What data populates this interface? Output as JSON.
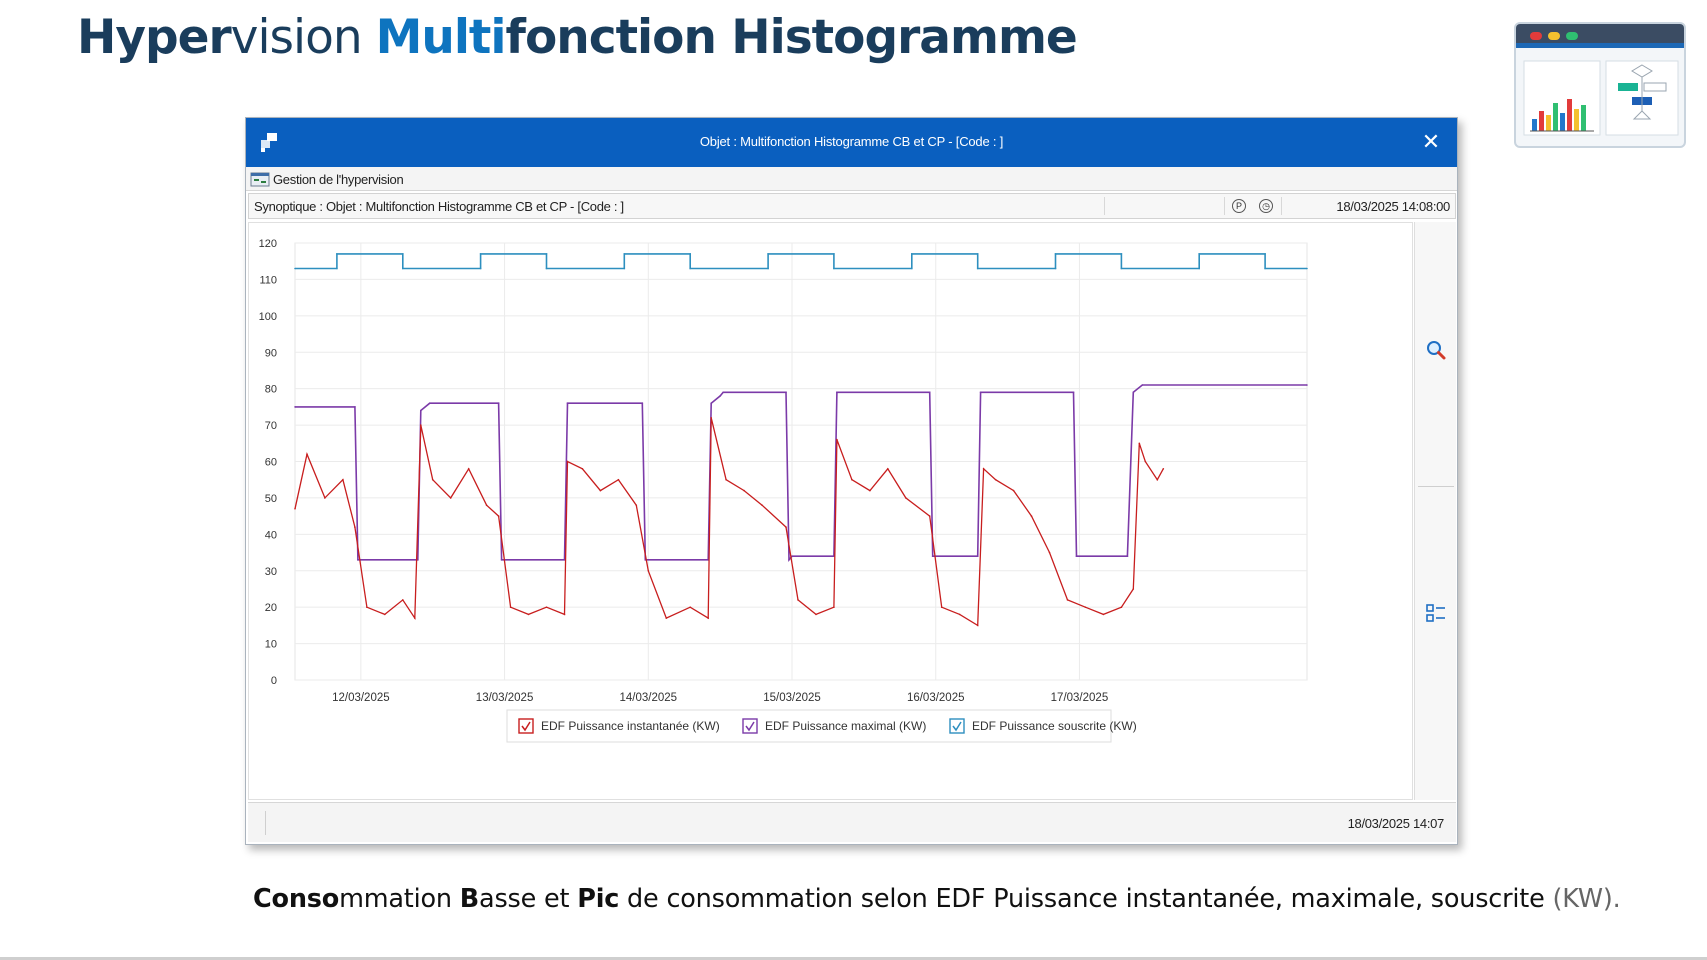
{
  "slide": {
    "title_parts": [
      "Hyper",
      "v",
      "ision ",
      "Multi",
      "fonction Histogramme"
    ],
    "caption_parts": [
      "Conso",
      "mmation ",
      "B",
      "asse et ",
      "Pic",
      " de consommation selon EDF Puissance instantanée, maximale, souscrite ",
      "(KW)",
      "."
    ]
  },
  "window": {
    "title": "Objet : Multifonction Histogramme CB et CP - [Code : ]",
    "menu_label": "Gestion de l'hypervision",
    "synoptique": "Synoptique : Objet : Multifonction Histogramme CB et CP - [Code : ]",
    "datetime": "18/03/2025 14:08:00",
    "status_datetime": "18/03/2025 14:07",
    "close_glyph": "✕"
  },
  "icons": {
    "app": "window-app-icon",
    "close": "close-icon",
    "menu": "hypervision-menu-icon",
    "info_p": "p-circle-icon",
    "info_clock": "clock-icon",
    "zoom": "magnifier-icon",
    "legend_toggle": "legend-list-icon"
  },
  "colors": {
    "title_dark": "#1a3d5c",
    "title_accent": "#0e74bf",
    "window_titlebar": "#0a5fbf",
    "instant": "#c81e1e",
    "maximal": "#7b3aa8",
    "souscrite": "#2d8fbf"
  },
  "chart_data": {
    "type": "line",
    "y_range": [
      0,
      120
    ],
    "y_ticks": [
      0,
      10,
      20,
      30,
      40,
      50,
      60,
      70,
      80,
      90,
      100,
      110,
      120
    ],
    "x_range": [
      "2025-03-11T13:00",
      "2025-03-18T14:00"
    ],
    "x_ticks": [
      "12/03/2025",
      "13/03/2025",
      "14/03/2025",
      "15/03/2025",
      "16/03/2025",
      "17/03/2025"
    ],
    "grid": true,
    "legend_position": "bottom-center",
    "series": [
      {
        "name": "EDF Puissance souscrite (KW)",
        "color": "#2d8fbf",
        "points": [
          [
            "2025-03-11T13:00",
            113
          ],
          [
            "2025-03-11T20:00",
            113
          ],
          [
            "2025-03-11T20:00",
            117
          ],
          [
            "2025-03-12T07:00",
            117
          ],
          [
            "2025-03-12T07:00",
            113
          ],
          [
            "2025-03-12T20:00",
            113
          ],
          [
            "2025-03-12T20:00",
            117
          ],
          [
            "2025-03-13T07:00",
            117
          ],
          [
            "2025-03-13T07:00",
            113
          ],
          [
            "2025-03-13T20:00",
            113
          ],
          [
            "2025-03-13T20:00",
            117
          ],
          [
            "2025-03-14T07:00",
            117
          ],
          [
            "2025-03-14T07:00",
            113
          ],
          [
            "2025-03-14T20:00",
            113
          ],
          [
            "2025-03-14T20:00",
            117
          ],
          [
            "2025-03-15T07:00",
            117
          ],
          [
            "2025-03-15T07:00",
            113
          ],
          [
            "2025-03-15T20:00",
            113
          ],
          [
            "2025-03-15T20:00",
            117
          ],
          [
            "2025-03-16T07:00",
            117
          ],
          [
            "2025-03-16T07:00",
            113
          ],
          [
            "2025-03-16T20:00",
            113
          ],
          [
            "2025-03-16T20:00",
            117
          ],
          [
            "2025-03-17T07:00",
            117
          ],
          [
            "2025-03-17T07:00",
            113
          ],
          [
            "2025-03-17T20:00",
            113
          ],
          [
            "2025-03-17T20:00",
            117
          ],
          [
            "2025-03-18T07:00",
            117
          ],
          [
            "2025-03-18T07:00",
            113
          ],
          [
            "2025-03-18T14:00",
            113
          ]
        ]
      },
      {
        "name": "EDF Puissance maximal (KW)",
        "color": "#7b3aa8",
        "points": [
          [
            "2025-03-11T13:00",
            75
          ],
          [
            "2025-03-11T23:00",
            75
          ],
          [
            "2025-03-11T23:30",
            33
          ],
          [
            "2025-03-12T09:30",
            33
          ],
          [
            "2025-03-12T10:00",
            74
          ],
          [
            "2025-03-12T11:30",
            76
          ],
          [
            "2025-03-12T23:00",
            76
          ],
          [
            "2025-03-12T23:30",
            33
          ],
          [
            "2025-03-13T10:00",
            33
          ],
          [
            "2025-03-13T10:30",
            76
          ],
          [
            "2025-03-13T23:00",
            76
          ],
          [
            "2025-03-13T23:30",
            33
          ],
          [
            "2025-03-14T10:00",
            33
          ],
          [
            "2025-03-14T10:30",
            76
          ],
          [
            "2025-03-14T12:00",
            78
          ],
          [
            "2025-03-14T12:30",
            79
          ],
          [
            "2025-03-14T23:00",
            79
          ],
          [
            "2025-03-14T23:30",
            33
          ],
          [
            "2025-03-15T00:00",
            34
          ],
          [
            "2025-03-15T07:00",
            34
          ],
          [
            "2025-03-15T07:30",
            79
          ],
          [
            "2025-03-15T23:00",
            79
          ],
          [
            "2025-03-15T23:30",
            34
          ],
          [
            "2025-03-16T07:00",
            34
          ],
          [
            "2025-03-16T07:30",
            79
          ],
          [
            "2025-03-16T23:00",
            79
          ],
          [
            "2025-03-16T23:30",
            34
          ],
          [
            "2025-03-17T08:00",
            34
          ],
          [
            "2025-03-17T09:00",
            79
          ],
          [
            "2025-03-17T10:30",
            81
          ],
          [
            "2025-03-18T14:00",
            81
          ]
        ]
      },
      {
        "name": "EDF Puissance instantanée (KW)",
        "color": "#c81e1e",
        "points": [
          [
            "2025-03-11T13:00",
            47
          ],
          [
            "2025-03-11T15:00",
            62
          ],
          [
            "2025-03-11T18:00",
            50
          ],
          [
            "2025-03-11T21:00",
            55
          ],
          [
            "2025-03-11T23:00",
            42
          ],
          [
            "2025-03-12T01:00",
            20
          ],
          [
            "2025-03-12T04:00",
            18
          ],
          [
            "2025-03-12T07:00",
            22
          ],
          [
            "2025-03-12T09:00",
            17
          ],
          [
            "2025-03-12T10:00",
            70
          ],
          [
            "2025-03-12T12:00",
            55
          ],
          [
            "2025-03-12T15:00",
            50
          ],
          [
            "2025-03-12T18:00",
            58
          ],
          [
            "2025-03-12T21:00",
            48
          ],
          [
            "2025-03-12T23:00",
            45
          ],
          [
            "2025-03-13T01:00",
            20
          ],
          [
            "2025-03-13T04:00",
            18
          ],
          [
            "2025-03-13T07:00",
            20
          ],
          [
            "2025-03-13T10:00",
            18
          ],
          [
            "2025-03-13T10:30",
            60
          ],
          [
            "2025-03-13T13:00",
            58
          ],
          [
            "2025-03-13T16:00",
            52
          ],
          [
            "2025-03-13T19:00",
            55
          ],
          [
            "2025-03-13T22:00",
            48
          ],
          [
            "2025-03-14T00:00",
            30
          ],
          [
            "2025-03-14T03:00",
            17
          ],
          [
            "2025-03-14T07:00",
            20
          ],
          [
            "2025-03-14T10:00",
            17
          ],
          [
            "2025-03-14T10:30",
            72
          ],
          [
            "2025-03-14T13:00",
            55
          ],
          [
            "2025-03-14T16:00",
            52
          ],
          [
            "2025-03-14T19:00",
            48
          ],
          [
            "2025-03-14T23:00",
            42
          ],
          [
            "2025-03-15T01:00",
            22
          ],
          [
            "2025-03-15T04:00",
            18
          ],
          [
            "2025-03-15T07:00",
            20
          ],
          [
            "2025-03-15T07:30",
            66
          ],
          [
            "2025-03-15T10:00",
            55
          ],
          [
            "2025-03-15T13:00",
            52
          ],
          [
            "2025-03-15T16:00",
            58
          ],
          [
            "2025-03-15T19:00",
            50
          ],
          [
            "2025-03-15T23:00",
            45
          ],
          [
            "2025-03-16T01:00",
            20
          ],
          [
            "2025-03-16T04:00",
            18
          ],
          [
            "2025-03-16T07:00",
            15
          ],
          [
            "2025-03-16T08:00",
            58
          ],
          [
            "2025-03-16T10:00",
            55
          ],
          [
            "2025-03-16T13:00",
            52
          ],
          [
            "2025-03-16T16:00",
            45
          ],
          [
            "2025-03-16T19:00",
            35
          ],
          [
            "2025-03-16T22:00",
            22
          ],
          [
            "2025-03-17T01:00",
            20
          ],
          [
            "2025-03-17T04:00",
            18
          ],
          [
            "2025-03-17T07:00",
            20
          ],
          [
            "2025-03-17T09:00",
            25
          ],
          [
            "2025-03-17T10:00",
            65
          ],
          [
            "2025-03-17T11:00",
            60
          ],
          [
            "2025-03-17T13:00",
            55
          ],
          [
            "2025-03-17T14:00",
            58
          ]
        ]
      }
    ]
  }
}
